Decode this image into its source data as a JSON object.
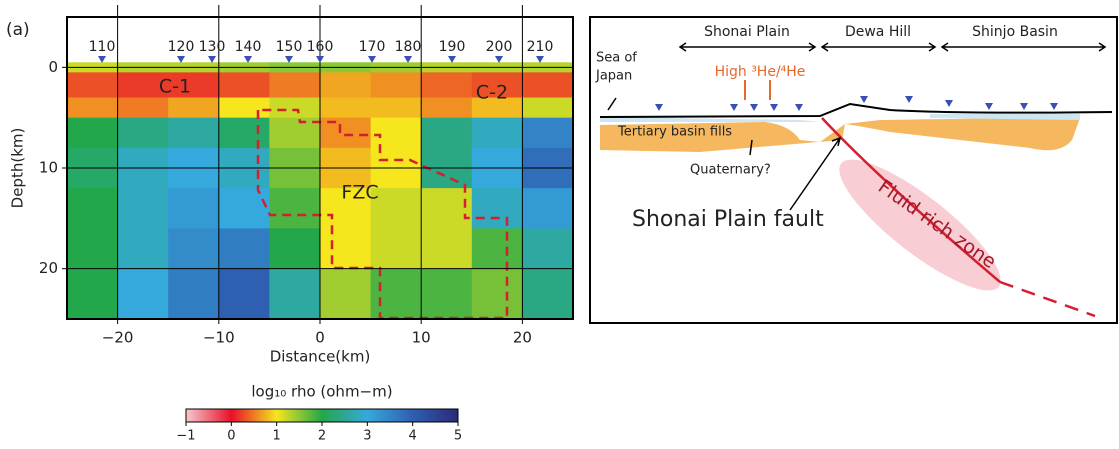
{
  "panel_label": "(a)",
  "chart_data": {
    "type": "heatmap",
    "xlabel": "Distance(km)",
    "ylabel": "Depth(km)",
    "xlim": [
      -25,
      25
    ],
    "ylim": [
      25,
      -5
    ],
    "xticks": [
      {
        "value": -20,
        "label": "−20"
      },
      {
        "value": -10,
        "label": "−10"
      },
      0,
      10,
      20
    ],
    "yticks": [
      0,
      10,
      20
    ],
    "grid": true,
    "x_edges": [
      -25,
      -20,
      -15,
      -10,
      -5,
      0,
      5,
      10,
      15,
      20,
      25
    ],
    "y_edges": [
      -0.5,
      0.5,
      3,
      5,
      8,
      12,
      16,
      20,
      25
    ],
    "values": [
      [
        1.2,
        1.3,
        1.3,
        1.4,
        1.5,
        1.5,
        1.4,
        1.3,
        1.3,
        1.3
      ],
      [
        0.3,
        0.2,
        0.2,
        0.3,
        0.5,
        0.7,
        0.6,
        0.4,
        0.3,
        0.3
      ],
      [
        0.6,
        0.5,
        0.7,
        1.0,
        1.2,
        0.8,
        0.8,
        0.6,
        0.8,
        1.2
      ],
      [
        2.0,
        2.4,
        2.6,
        2.2,
        1.4,
        0.6,
        1.0,
        2.4,
        2.8,
        3.5
      ],
      [
        2.2,
        2.8,
        3.0,
        2.8,
        1.6,
        0.8,
        1.0,
        2.4,
        3.0,
        3.8
      ],
      [
        2.0,
        2.8,
        3.2,
        3.0,
        1.8,
        1.0,
        1.2,
        1.2,
        2.8,
        3.2
      ],
      [
        2.0,
        2.8,
        3.4,
        3.6,
        2.0,
        1.0,
        1.2,
        1.2,
        1.8,
        2.6
      ],
      [
        2.0,
        3.0,
        3.6,
        4.0,
        2.6,
        1.4,
        1.8,
        1.8,
        1.6,
        2.4
      ]
    ],
    "stations": [
      "110",
      "120",
      "130",
      "140",
      "150",
      "160",
      "170",
      "180",
      "190",
      "200",
      "210"
    ],
    "region_labels": [
      "C-1",
      "C-2",
      "FZC"
    ],
    "colorbar": {
      "label": "log₁₀ rho (ohm−m)",
      "lim": [
        -1,
        5
      ],
      "ticks": [
        {
          "value": -1,
          "label": "−1"
        },
        0,
        1,
        2,
        3,
        4,
        5
      ],
      "colors": [
        "#f6c9cf",
        "#e8102a",
        "#f5e61e",
        "#22a84a",
        "#35a9dc",
        "#2f5fb0",
        "#2b2a78"
      ]
    }
  },
  "schematic": {
    "regions": [
      "Shonai Plain",
      "Dewa Hill",
      "Shinjo Basin"
    ],
    "sea": [
      "Sea of",
      "Japan"
    ],
    "helium": "High ³He/⁴He",
    "basin": "Tertiary basin fills",
    "quaternary": "Quaternary?",
    "fault": "Shonai Plain fault",
    "zone": "Fluid rich zone"
  }
}
